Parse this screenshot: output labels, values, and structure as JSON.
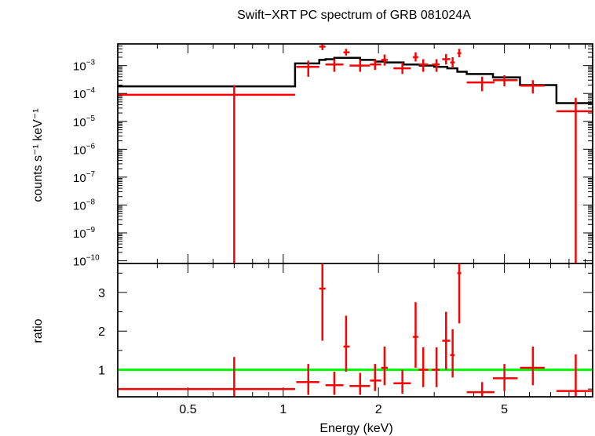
{
  "colors": {
    "data": "#ff0000",
    "model": "#000000",
    "unity": "#00ff00",
    "frame": "#000000"
  },
  "chart_data": [
    {
      "type": "scatter",
      "panel": "top",
      "title": "Swift−XRT PC spectrum of GRB 081024A",
      "ylabel": "counts s⁻¹ keV⁻¹",
      "xlabel": "",
      "x_scale": "log",
      "y_scale": "log",
      "xlim": [
        0.3,
        9.5
      ],
      "ylim": [
        8e-11,
        0.006
      ],
      "y_tick_labels": [
        {
          "value": 0.001,
          "mant": "10",
          "exp": "−3"
        },
        {
          "value": 0.0001,
          "mant": "10",
          "exp": "−4"
        },
        {
          "value": 1e-05,
          "mant": "10",
          "exp": "−5"
        },
        {
          "value": 1e-06,
          "mant": "10",
          "exp": "−6"
        },
        {
          "value": 1e-07,
          "mant": "10",
          "exp": "−7"
        },
        {
          "value": 1e-08,
          "mant": "10",
          "exp": "−8"
        },
        {
          "value": 1e-09,
          "mant": "10",
          "exp": "−9"
        },
        {
          "value": 1e-10,
          "mant": "10",
          "exp": "−10"
        }
      ],
      "series": [
        {
          "kind": "data",
          "points": [
            {
              "x": 0.7,
              "xlo": 0.3,
              "xhi": 1.09,
              "y": 9e-05,
              "ylo": 8e-11,
              "yhi": 0.0002
            },
            {
              "x": 1.2,
              "xlo": 1.1,
              "xhi": 1.3,
              "y": 0.0009,
              "ylo": 0.0004,
              "yhi": 0.0015
            },
            {
              "x": 1.33,
              "xlo": 1.3,
              "xhi": 1.36,
              "y": 0.0048,
              "ylo": 0.0036,
              "yhi": 0.006
            },
            {
              "x": 1.45,
              "xlo": 1.36,
              "xhi": 1.55,
              "y": 0.0011,
              "ylo": 0.0006,
              "yhi": 0.0017
            },
            {
              "x": 1.58,
              "xlo": 1.55,
              "xhi": 1.62,
              "y": 0.003,
              "ylo": 0.0023,
              "yhi": 0.004
            },
            {
              "x": 1.75,
              "xlo": 1.62,
              "xhi": 1.88,
              "y": 0.001,
              "ylo": 0.0006,
              "yhi": 0.0016
            },
            {
              "x": 1.95,
              "xlo": 1.88,
              "xhi": 2.04,
              "y": 0.0011,
              "ylo": 0.0007,
              "yhi": 0.0017
            },
            {
              "x": 2.09,
              "xlo": 2.04,
              "xhi": 2.14,
              "y": 0.0016,
              "ylo": 0.001,
              "yhi": 0.0025
            },
            {
              "x": 2.38,
              "xlo": 2.23,
              "xhi": 2.53,
              "y": 0.0008,
              "ylo": 0.0005,
              "yhi": 0.0013
            },
            {
              "x": 2.62,
              "xlo": 2.57,
              "xhi": 2.67,
              "y": 0.002,
              "ylo": 0.0014,
              "yhi": 0.003
            },
            {
              "x": 2.77,
              "xlo": 2.68,
              "xhi": 2.87,
              "y": 0.0011,
              "ylo": 0.0006,
              "yhi": 0.0017
            },
            {
              "x": 3.05,
              "xlo": 2.95,
              "xhi": 3.12,
              "y": 0.0011,
              "ylo": 0.0006,
              "yhi": 0.0017
            },
            {
              "x": 3.27,
              "xlo": 3.18,
              "xhi": 3.37,
              "y": 0.0017,
              "ylo": 0.0011,
              "yhi": 0.0026
            },
            {
              "x": 3.43,
              "xlo": 3.37,
              "xhi": 3.48,
              "y": 0.0013,
              "ylo": 0.0008,
              "yhi": 0.002
            },
            {
              "x": 3.6,
              "xlo": 3.55,
              "xhi": 3.65,
              "y": 0.0028,
              "ylo": 0.002,
              "yhi": 0.004
            },
            {
              "x": 4.25,
              "xlo": 3.8,
              "xhi": 4.65,
              "y": 0.00025,
              "ylo": 0.00012,
              "yhi": 0.0004
            },
            {
              "x": 5.0,
              "xlo": 4.6,
              "xhi": 5.5,
              "y": 0.0003,
              "ylo": 0.00018,
              "yhi": 0.00045
            },
            {
              "x": 6.15,
              "xlo": 5.6,
              "xhi": 6.7,
              "y": 0.00019,
              "ylo": 0.0001,
              "yhi": 0.0003
            },
            {
              "x": 8.4,
              "xlo": 7.3,
              "xhi": 9.5,
              "y": 2.3e-05,
              "ylo": 8e-11,
              "yhi": 7e-05
            }
          ]
        },
        {
          "kind": "model",
          "steps": [
            {
              "x0": 0.3,
              "x1": 1.09,
              "y": 0.00018
            },
            {
              "x0": 1.09,
              "x1": 1.3,
              "y": 0.0012
            },
            {
              "x0": 1.3,
              "x1": 1.36,
              "y": 0.0016
            },
            {
              "x0": 1.36,
              "x1": 1.45,
              "y": 0.0017
            },
            {
              "x0": 1.45,
              "x1": 1.55,
              "y": 0.0019
            },
            {
              "x0": 1.55,
              "x1": 1.75,
              "y": 0.0019
            },
            {
              "x0": 1.75,
              "x1": 1.95,
              "y": 0.0016
            },
            {
              "x0": 1.95,
              "x1": 2.1,
              "y": 0.0014
            },
            {
              "x0": 2.1,
              "x1": 2.4,
              "y": 0.0013
            },
            {
              "x0": 2.4,
              "x1": 2.7,
              "y": 0.0011
            },
            {
              "x0": 2.7,
              "x1": 3.0,
              "y": 0.001
            },
            {
              "x0": 3.0,
              "x1": 3.3,
              "y": 0.0009
            },
            {
              "x0": 3.3,
              "x1": 3.55,
              "y": 0.0008
            },
            {
              "x0": 3.55,
              "x1": 3.8,
              "y": 0.0006
            },
            {
              "x0": 3.8,
              "x1": 4.6,
              "y": 0.0005
            },
            {
              "x0": 4.6,
              "x1": 5.6,
              "y": 0.00038
            },
            {
              "x0": 5.6,
              "x1": 7.3,
              "y": 0.0002
            },
            {
              "x0": 7.3,
              "x1": 9.5,
              "y": 4.5e-05
            }
          ]
        }
      ]
    },
    {
      "type": "scatter",
      "panel": "bottom",
      "ylabel": "ratio",
      "xlabel": "Energy (keV)",
      "x_scale": "log",
      "y_scale": "linear",
      "xlim": [
        0.3,
        9.5
      ],
      "ylim": [
        0.3,
        3.75
      ],
      "x_tick_labels": [
        {
          "value": 0.5,
          "label": "0.5"
        },
        {
          "value": 1,
          "label": "1"
        },
        {
          "value": 2,
          "label": "2"
        },
        {
          "value": 5,
          "label": "5"
        }
      ],
      "y_tick_labels": [
        {
          "value": 1,
          "label": "1"
        },
        {
          "value": 2,
          "label": "2"
        },
        {
          "value": 3,
          "label": "3"
        }
      ],
      "reference_line": {
        "y": 1
      },
      "series": [
        {
          "kind": "data",
          "points": [
            {
              "x": 0.7,
              "xlo": 0.3,
              "xhi": 1.09,
              "y": 0.5,
              "ylo": 0.3,
              "yhi": 1.33
            },
            {
              "x": 1.2,
              "xlo": 1.1,
              "xhi": 1.3,
              "y": 0.68,
              "ylo": 0.35,
              "yhi": 1.15
            },
            {
              "x": 1.33,
              "xlo": 1.3,
              "xhi": 1.36,
              "y": 3.1,
              "ylo": 1.75,
              "yhi": 3.75
            },
            {
              "x": 1.45,
              "xlo": 1.36,
              "xhi": 1.55,
              "y": 0.6,
              "ylo": 0.35,
              "yhi": 0.95
            },
            {
              "x": 1.58,
              "xlo": 1.55,
              "xhi": 1.62,
              "y": 1.6,
              "ylo": 0.95,
              "yhi": 2.4
            },
            {
              "x": 1.75,
              "xlo": 1.62,
              "xhi": 1.88,
              "y": 0.58,
              "ylo": 0.35,
              "yhi": 0.92
            },
            {
              "x": 1.95,
              "xlo": 1.88,
              "xhi": 2.04,
              "y": 0.72,
              "ylo": 0.45,
              "yhi": 1.15
            },
            {
              "x": 2.09,
              "xlo": 2.04,
              "xhi": 2.14,
              "y": 1.05,
              "ylo": 0.6,
              "yhi": 1.6
            },
            {
              "x": 2.38,
              "xlo": 2.23,
              "xhi": 2.53,
              "y": 0.65,
              "ylo": 0.38,
              "yhi": 1.0
            },
            {
              "x": 2.62,
              "xlo": 2.57,
              "xhi": 2.67,
              "y": 1.85,
              "ylo": 1.05,
              "yhi": 2.75
            },
            {
              "x": 2.77,
              "xlo": 2.68,
              "xhi": 2.87,
              "y": 1.0,
              "ylo": 0.55,
              "yhi": 1.58
            },
            {
              "x": 3.05,
              "xlo": 2.95,
              "xhi": 3.12,
              "y": 1.0,
              "ylo": 0.55,
              "yhi": 1.58
            },
            {
              "x": 3.27,
              "xlo": 3.18,
              "xhi": 3.37,
              "y": 1.75,
              "ylo": 1.0,
              "yhi": 2.5
            },
            {
              "x": 3.43,
              "xlo": 3.37,
              "xhi": 3.48,
              "y": 1.38,
              "ylo": 0.8,
              "yhi": 2.05
            },
            {
              "x": 3.6,
              "xlo": 3.55,
              "xhi": 3.65,
              "y": 3.5,
              "ylo": 2.2,
              "yhi": 3.75
            },
            {
              "x": 4.25,
              "xlo": 3.8,
              "xhi": 4.65,
              "y": 0.42,
              "ylo": 0.3,
              "yhi": 0.68
            },
            {
              "x": 5.0,
              "xlo": 4.6,
              "xhi": 5.5,
              "y": 0.78,
              "ylo": 0.45,
              "yhi": 1.15
            },
            {
              "x": 6.15,
              "xlo": 5.6,
              "xhi": 6.7,
              "y": 1.05,
              "ylo": 0.6,
              "yhi": 1.6
            },
            {
              "x": 8.4,
              "xlo": 7.3,
              "xhi": 9.5,
              "y": 0.45,
              "ylo": 0.3,
              "yhi": 1.4
            }
          ]
        }
      ]
    }
  ]
}
